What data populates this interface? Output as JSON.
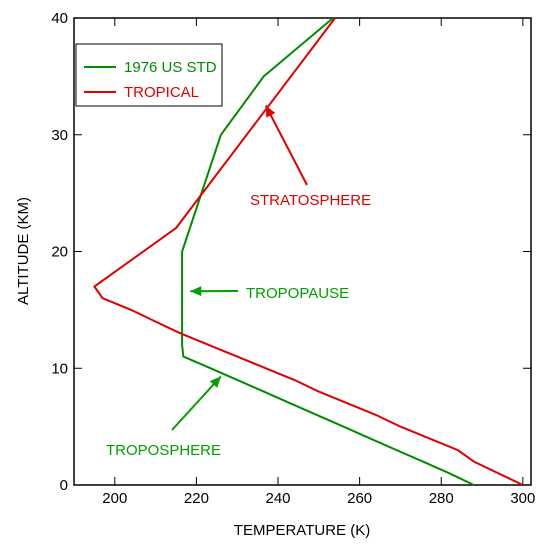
{
  "chart_data": {
    "type": "line",
    "title": "",
    "xlabel": "TEMPERATURE (K)",
    "ylabel": "ALTITUDE (KM)",
    "xlim": [
      190,
      302
    ],
    "ylim": [
      0,
      40
    ],
    "xticks": [
      200,
      220,
      240,
      260,
      280,
      300
    ],
    "yticks": [
      0,
      10,
      20,
      30,
      40
    ],
    "grid": false,
    "legend_position": "top-left",
    "series": [
      {
        "name": "1976 US STD",
        "color": "#008c00",
        "points": [
          [
            288,
            0
          ],
          [
            282,
            1
          ],
          [
            275.5,
            2
          ],
          [
            269,
            3
          ],
          [
            262.5,
            4
          ],
          [
            256,
            5
          ],
          [
            249.5,
            6
          ],
          [
            243,
            7
          ],
          [
            236.5,
            8
          ],
          [
            230,
            9
          ],
          [
            223.5,
            10
          ],
          [
            216.8,
            11
          ],
          [
            216.5,
            12
          ],
          [
            216.5,
            20
          ],
          [
            226,
            30
          ],
          [
            236.5,
            35
          ],
          [
            253.5,
            40
          ]
        ]
      },
      {
        "name": "TROPICAL",
        "color": "#e00000",
        "points": [
          [
            300,
            0
          ],
          [
            288,
            2
          ],
          [
            284,
            3
          ],
          [
            277,
            4
          ],
          [
            270,
            5
          ],
          [
            264,
            6
          ],
          [
            257,
            7
          ],
          [
            250,
            8
          ],
          [
            244,
            9
          ],
          [
            237,
            10
          ],
          [
            230,
            11
          ],
          [
            223,
            12
          ],
          [
            216,
            13
          ],
          [
            210,
            14
          ],
          [
            204,
            15
          ],
          [
            197,
            16
          ],
          [
            195,
            17
          ],
          [
            215,
            22
          ],
          [
            254,
            40
          ]
        ]
      }
    ],
    "annotations": [
      {
        "text": "STRATOSPHERE",
        "color": "#e00000",
        "arrow_to": [
          237,
          32.5
        ]
      },
      {
        "text": "TROPOPAUSE",
        "color": "#00a000",
        "arrow_to": [
          218.5,
          16.6
        ]
      },
      {
        "text": "TROPOSPHERE",
        "color": "#00a000",
        "arrow_to": [
          226,
          9.3
        ]
      }
    ]
  }
}
